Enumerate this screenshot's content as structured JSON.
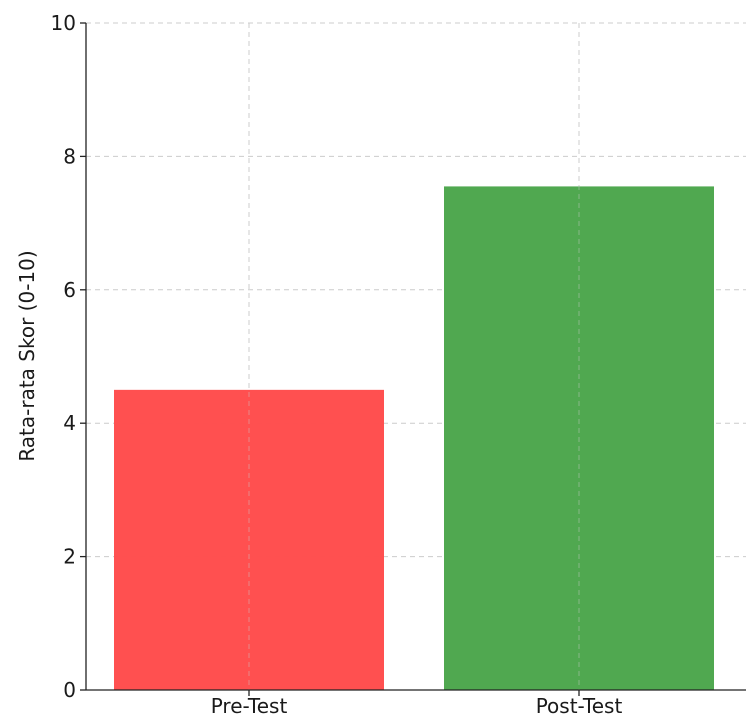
{
  "chart_data": {
    "type": "bar",
    "categories": [
      "Pre-Test",
      "Post-Test"
    ],
    "values": [
      4.5,
      7.55
    ],
    "colors": [
      "#ff4c4c",
      "#4ca64c"
    ],
    "title": "",
    "xlabel": "",
    "ylabel": "Rata-rata Skor (0-10)",
    "ylim": [
      0,
      10
    ],
    "yticks": [
      "0",
      "2",
      "4",
      "6",
      "8",
      "10"
    ],
    "grid": true
  }
}
